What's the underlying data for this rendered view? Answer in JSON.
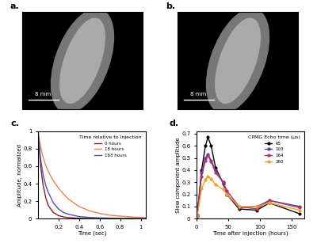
{
  "images": [
    {
      "panel_label": "a.",
      "scale_bar": "8 mm"
    },
    {
      "panel_label": "b.",
      "scale_bar": "8 mm"
    }
  ],
  "chart_data": [
    {
      "type": "line",
      "panel_label": "c.",
      "x_label": "Time (sec)",
      "y_label": "Amplitude, normalized",
      "legend_title": "Time relative to injection",
      "legend": "upper right",
      "x": [
        0,
        0.025,
        0.05,
        0.075,
        0.1,
        0.15,
        0.2,
        0.25,
        0.3,
        0.4,
        0.5,
        0.6,
        0.7,
        0.8,
        0.9,
        1.0,
        1.05
      ],
      "series": [
        {
          "name": "0 hours",
          "color": "#8b1a1a",
          "values": [
            1,
            0.6,
            0.38,
            0.24,
            0.15,
            0.07,
            0.035,
            0.02,
            0.012,
            0.005,
            0.003,
            0.002,
            0.001,
            0.001,
            0.001,
            0,
            0
          ]
        },
        {
          "name": "18 hours",
          "color": "#f08050",
          "values": [
            1,
            0.82,
            0.7,
            0.61,
            0.54,
            0.43,
            0.35,
            0.28,
            0.22,
            0.14,
            0.09,
            0.06,
            0.04,
            0.03,
            0.02,
            0.015,
            0.012
          ]
        },
        {
          "name": "163 hours",
          "color": "#5050b0",
          "values": [
            1,
            0.68,
            0.5,
            0.38,
            0.3,
            0.18,
            0.11,
            0.07,
            0.05,
            0.025,
            0.015,
            0.01,
            0.007,
            0.005,
            0.004,
            0.003,
            0.003
          ]
        }
      ],
      "xlim": [
        0,
        1.05
      ],
      "xticks": [
        0.2,
        0.4,
        0.6,
        0.8,
        1
      ],
      "ylim": [
        0,
        1
      ],
      "yticks": [
        0,
        0.2,
        0.4,
        0.6,
        0.8,
        1
      ]
    },
    {
      "type": "line",
      "panel_label": "d.",
      "marker": "o",
      "x_label": "Time after injection (hours)",
      "y_label": "Slow component amplitude",
      "legend_title": "CPMG Echo time (µs)",
      "legend": "upper right",
      "x": [
        1,
        8,
        14,
        18,
        23,
        30,
        42,
        48,
        67,
        95,
        115,
        163
      ],
      "series": [
        {
          "name": "65",
          "color": "#000000",
          "values": [
            0.02,
            0.4,
            0.6,
            0.67,
            0.6,
            0.42,
            0.29,
            0.2,
            0.08,
            0.07,
            0.13,
            0.04
          ]
        },
        {
          "name": "103",
          "color": "#5a3aa0",
          "values": [
            0.03,
            0.38,
            0.5,
            0.53,
            0.48,
            0.4,
            0.3,
            0.2,
            0.09,
            0.1,
            0.15,
            0.1
          ]
        },
        {
          "name": "164",
          "color": "#b03070",
          "values": [
            0.03,
            0.35,
            0.48,
            0.52,
            0.47,
            0.38,
            0.3,
            0.23,
            0.1,
            0.08,
            0.15,
            0.09
          ]
        },
        {
          "name": "260",
          "color": "#f0a020",
          "values": [
            0.02,
            0.25,
            0.32,
            0.35,
            0.33,
            0.28,
            0.24,
            0.2,
            0.1,
            0.1,
            0.13,
            0.07
          ]
        }
      ],
      "xlim": [
        0,
        170
      ],
      "xticks": [
        0,
        50,
        100,
        150
      ],
      "ylim": [
        0,
        0.72
      ],
      "yticks": [
        0,
        0.1,
        0.2,
        0.3,
        0.4,
        0.5,
        0.6,
        0.7
      ]
    }
  ]
}
